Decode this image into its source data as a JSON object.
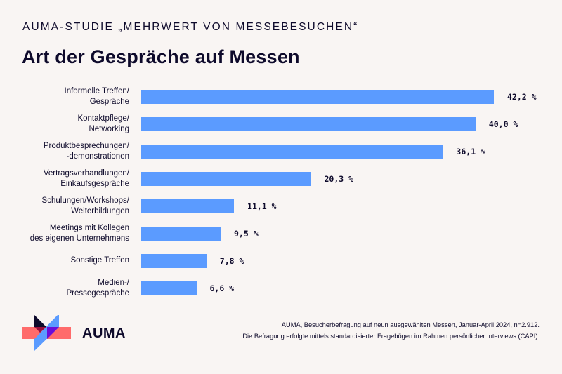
{
  "header": {
    "kicker": "AUMA-STUDIE „MEHRWERT VON MESSEBESUCHEN“",
    "title": "Art der Gespräche auf Messen"
  },
  "colors": {
    "background": "#F9F5F3",
    "bar": "#5B9BFF",
    "text": "#0E0A2B",
    "logo_coral": "#FF6B6B",
    "logo_navy": "#0E0A2B",
    "logo_blue": "#5B9BFF",
    "logo_purple": "#6A0DD8",
    "logo_crimson": "#9B0E3C"
  },
  "chart_data": {
    "type": "bar",
    "orientation": "horizontal",
    "title": "Art der Gespräche auf Messen",
    "subtitle": "AUMA-STUDIE „MEHRWERT VON MESSEBESUCHEN“",
    "xlabel": "",
    "ylabel": "",
    "unit": "%",
    "grid": false,
    "legend": "none",
    "xlim": [
      0,
      42.2
    ],
    "categories": [
      "Informelle Treffen/\nGespräche",
      "Kontaktpflege/\nNetworking",
      "Produktbesprechungen/\n-demonstrationen",
      "Vertragsverhandlungen/\nEinkaufsgespräche",
      "Schulungen/Workshops/\nWeiterbildungen",
      "Meetings mit Kollegen\ndes eigenen Unternehmens",
      "Sonstige Treffen",
      "Medien-/\nPressegespräche"
    ],
    "values": [
      42.2,
      40.0,
      36.1,
      20.3,
      11.1,
      9.5,
      7.8,
      6.6
    ],
    "value_labels": [
      "42,2 %",
      "40,0 %",
      "36,1 %",
      "20,3 %",
      "11,1 %",
      "9,5 %",
      "7,8 %",
      "6,6 %"
    ]
  },
  "footer": {
    "logo_text": "AUMA",
    "source_line1": "AUMA, Besucherbefragung auf neun ausgewählten Messen, Januar-April 2024, n=2.912.",
    "source_line2": "Die Befragung erfolgte mittels standardisierter Fragebögen im Rahmen persönlicher Interviews (CAPI)."
  }
}
